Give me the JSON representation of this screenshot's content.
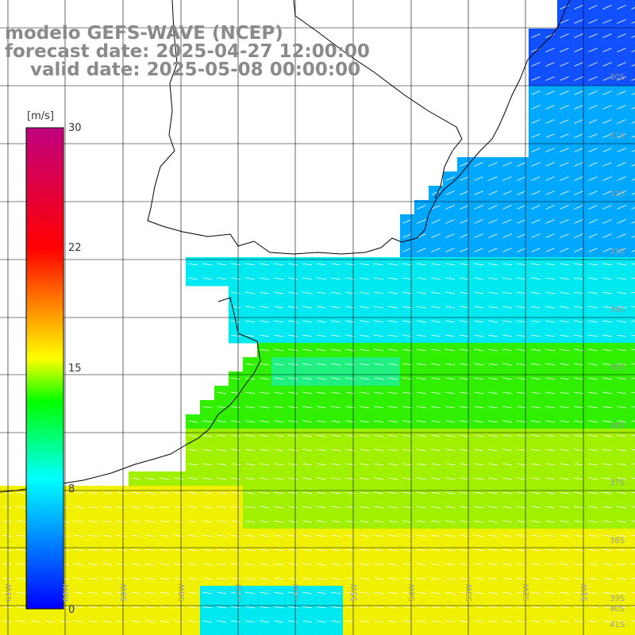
{
  "header": {
    "model": "modelo GEFS-WAVE (NCEP)",
    "forecast": "forecast date: 2025-04-27 12:00:00",
    "valid": "    valid date: 2025-05-08 00:00:00"
  },
  "colorbar": {
    "unit": "[m/s]",
    "ticks": [
      "30",
      "22",
      "15",
      "8",
      "0"
    ],
    "colors": [
      "#0000ff",
      "#00ffff",
      "#00ff00",
      "#ffff00",
      "#ff0000",
      "#c00080"
    ]
  },
  "lat_labels": [
    "30S",
    "31S",
    "32S",
    "33S",
    "34S",
    "35S",
    "36S",
    "37S",
    "38S",
    "39S",
    "40S",
    "41S"
  ],
  "lon_labels": [
    "61W",
    "60W",
    "59W",
    "58W",
    "57W",
    "56W",
    "55W",
    "54W",
    "53W",
    "52W",
    "51W"
  ],
  "style": {
    "grid": "#000000",
    "coast": "#000000",
    "land": "#ffffff",
    "arrow": "#ffffff"
  }
}
